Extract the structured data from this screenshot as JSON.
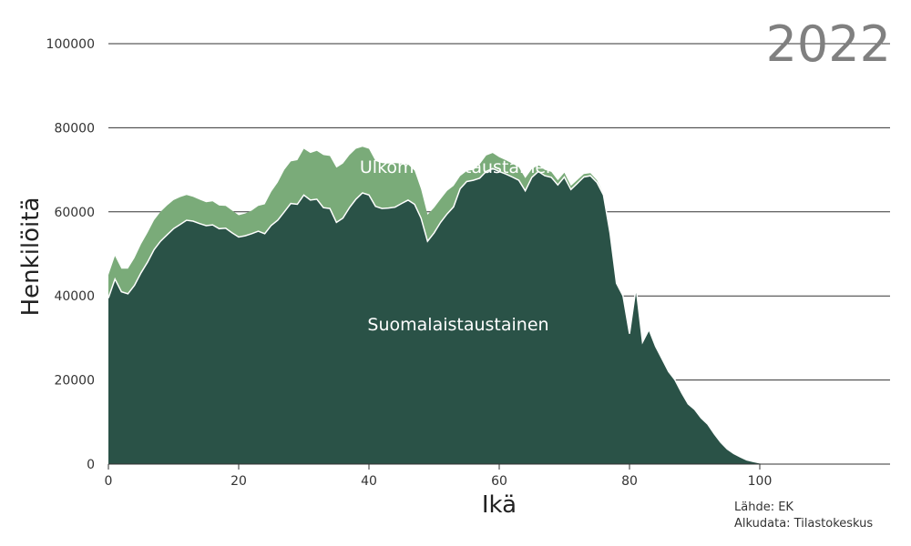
{
  "chart_data": {
    "type": "area",
    "stacked": true,
    "year_label": "2022",
    "xlabel": "Ikä",
    "ylabel": "Henkilöitä",
    "xlim": [
      0,
      120
    ],
    "ylim": [
      0,
      100000
    ],
    "x_ticks": [
      "0",
      "20",
      "40",
      "60",
      "80",
      "100"
    ],
    "y_ticks": [
      "0",
      "20000",
      "40000",
      "60000",
      "80000",
      "100000"
    ],
    "grid": "horizontal",
    "source_lines": [
      "Lähde: EK",
      "Alkudata: Tilastokeskus"
    ],
    "colors": {
      "suomalaistaustainen": "#2a5247",
      "ulkomaalaistaustainen": "#7aab79",
      "separator": "#ffffff",
      "grid": "#333333"
    },
    "x": [
      0,
      1,
      2,
      3,
      4,
      5,
      6,
      7,
      8,
      9,
      10,
      11,
      12,
      13,
      14,
      15,
      16,
      17,
      18,
      19,
      20,
      21,
      22,
      23,
      24,
      25,
      26,
      27,
      28,
      29,
      30,
      31,
      32,
      33,
      34,
      35,
      36,
      37,
      38,
      39,
      40,
      41,
      42,
      43,
      44,
      45,
      46,
      47,
      48,
      49,
      50,
      51,
      52,
      53,
      54,
      55,
      56,
      57,
      58,
      59,
      60,
      61,
      62,
      63,
      64,
      65,
      66,
      67,
      68,
      69,
      70,
      71,
      72,
      73,
      74,
      75,
      76,
      77,
      78,
      79,
      80,
      81,
      82,
      83,
      84,
      85,
      86,
      87,
      88,
      89,
      90,
      91,
      92,
      93,
      94,
      95,
      96,
      97,
      98,
      99,
      100,
      101,
      102,
      103,
      104,
      105,
      106,
      107,
      108,
      109,
      110,
      111,
      112,
      113,
      114,
      115,
      116,
      117,
      118,
      119,
      120
    ],
    "series": [
      {
        "name": "Suomalaistaustainen",
        "label_position": "center",
        "values": [
          39500,
          44000,
          41000,
          40500,
          42500,
          45500,
          48000,
          51000,
          53000,
          54500,
          56000,
          57000,
          58000,
          57800,
          57200,
          56700,
          56900,
          56000,
          56100,
          55000,
          54000,
          54300,
          54800,
          55400,
          54800,
          56800,
          58000,
          60000,
          62000,
          61800,
          64000,
          62800,
          63000,
          61000,
          60800,
          57500,
          58500,
          61000,
          63000,
          64500,
          64000,
          61300,
          60800,
          60900,
          61100,
          62000,
          62800,
          61800,
          58500,
          53000,
          55000,
          57500,
          59500,
          61200,
          65500,
          67200,
          67500,
          68000,
          69600,
          70300,
          69600,
          69000,
          68300,
          67500,
          65000,
          68200,
          69600,
          68600,
          68200,
          66400,
          68300,
          65300,
          66800,
          68300,
          68600,
          67000,
          64000,
          55000,
          43000,
          40000,
          31000,
          42000,
          29000,
          32000,
          28000,
          25000,
          22000,
          20000,
          17000,
          14300,
          13000,
          11000,
          9500,
          7200,
          5200,
          3600,
          2500,
          1700,
          1000,
          600,
          300,
          150,
          50,
          20,
          0,
          0,
          0,
          0,
          0,
          0,
          0,
          0,
          0,
          0,
          0,
          0,
          0,
          0,
          0,
          0,
          0
        ]
      },
      {
        "name": "Ulkomaalaistaustainen",
        "label_position": "upper",
        "values": [
          5500,
          5500,
          5500,
          6000,
          6500,
          6800,
          7000,
          7000,
          7000,
          7000,
          6800,
          6500,
          6000,
          5800,
          5700,
          5600,
          5600,
          5500,
          5300,
          5300,
          5200,
          5300,
          5500,
          6000,
          7000,
          8000,
          9000,
          10000,
          10000,
          10500,
          11000,
          11200,
          11500,
          12500,
          12500,
          13000,
          13000,
          12500,
          12000,
          11000,
          11000,
          10800,
          10800,
          10600,
          10500,
          9500,
          8500,
          8000,
          6900,
          6300,
          6000,
          5500,
          5500,
          5000,
          3000,
          2500,
          2500,
          3300,
          3800,
          3700,
          3400,
          3300,
          3200,
          3100,
          3000,
          2000,
          1500,
          1400,
          1300,
          1100,
          1000,
          900,
          800,
          700,
          600,
          500,
          300,
          200,
          100,
          0,
          0,
          0,
          0,
          0,
          0,
          0,
          0,
          0,
          0,
          0,
          0,
          0,
          0,
          0,
          0,
          0,
          0,
          0,
          0,
          0,
          0,
          0,
          0,
          0,
          0,
          0,
          0,
          0,
          0,
          0,
          0,
          0,
          0,
          0,
          0,
          0,
          0,
          0,
          0,
          0,
          0
        ]
      }
    ]
  }
}
